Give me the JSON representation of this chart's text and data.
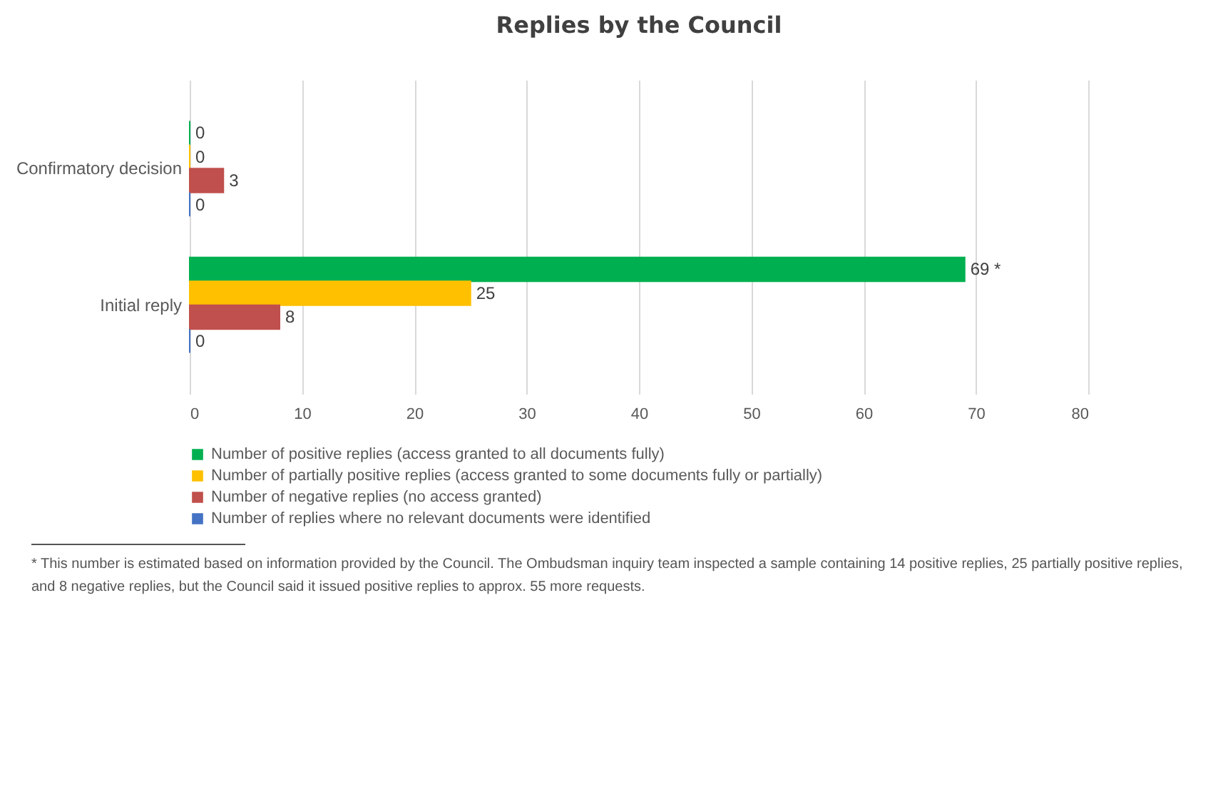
{
  "chart_data": {
    "type": "bar",
    "orientation": "horizontal",
    "title": "Replies by the Council",
    "categories": [
      "Confirmatory decision",
      "Initial reply"
    ],
    "series": [
      {
        "name": "Number of positive replies (access granted to all documents fully)",
        "color": "#00b050",
        "values": [
          0,
          69
        ],
        "value_labels": [
          "0",
          "69 *"
        ]
      },
      {
        "name": "Number of partially positive replies (access granted to some documents fully or partially)",
        "color": "#ffc000",
        "values": [
          0,
          25
        ],
        "value_labels": [
          "0",
          "25"
        ]
      },
      {
        "name": "Number of negative replies (no access granted)",
        "color": "#c0504d",
        "values": [
          3,
          8
        ],
        "value_labels": [
          "3",
          "8"
        ]
      },
      {
        "name": "Number of replies where no relevant documents were identified",
        "color": "#4472c4",
        "values": [
          0,
          0
        ],
        "value_labels": [
          "0",
          "0"
        ]
      }
    ],
    "xlim": [
      0,
      80
    ],
    "xticks": [
      0,
      10,
      20,
      30,
      40,
      50,
      60,
      70,
      80
    ],
    "grid": "x",
    "legend": "bottom",
    "annotations": [
      "* This number is estimated based on information provided by the Council. The Ombudsman inquiry team inspected a sample containing 14 positive replies, 25 partially positive replies, and 8 negative replies, but the Council said it issued positive replies to approx. 55 more requests."
    ]
  }
}
